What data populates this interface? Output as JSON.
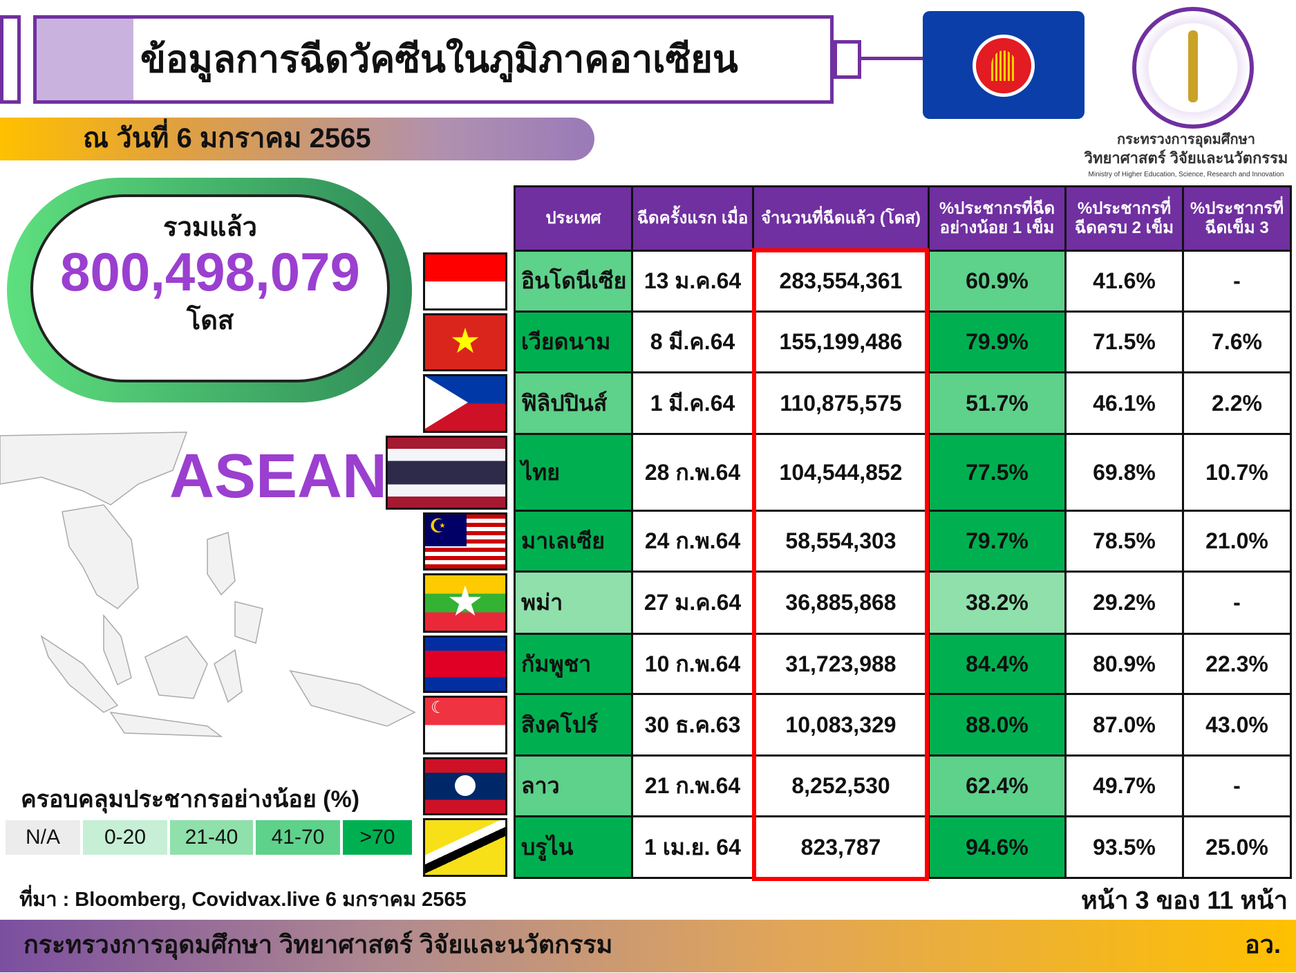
{
  "header": {
    "title": "ข้อมูลการฉีดวัคซีนในภูมิภาคอาเซียน",
    "date": "ณ วันที่ 6 มกราคม 2565"
  },
  "ministry": {
    "name_th": "กระทรวงการอุดมศึกษา",
    "name_th2": "วิทยาศาสตร์ วิจัยและนวัตกรรม",
    "name_en": "Ministry of Higher Education, Science, Research and Innovation"
  },
  "total": {
    "label": "รวมแล้ว",
    "value": "800,498,079",
    "unit": "โดส"
  },
  "map_label": "ASEAN",
  "legend": {
    "title": "ครอบคลุมประชากรอย่างน้อย (%)",
    "items": [
      {
        "label": "N/A",
        "color": "#ececec"
      },
      {
        "label": "0-20",
        "color": "#c6efd5"
      },
      {
        "label": "21-40",
        "color": "#8fe0ab"
      },
      {
        "label": "41-70",
        "color": "#5ed18b"
      },
      {
        "label": ">70",
        "color": "#00b050"
      }
    ]
  },
  "table": {
    "headers": [
      "ประเทศ",
      "ฉีดครั้งแรก เมื่อ",
      "จำนวนที่ฉีดแล้ว (โดส)",
      "%ประชากรที่ฉีด อย่างน้อย 1 เข็ม",
      "%ประชากรที่ ฉีดครบ 2 เข็ม",
      "%ประชากรที่ ฉีดเข็ม 3"
    ],
    "rows": [
      {
        "country": "อินโดนีเซีย",
        "first": "13 ม.ค.64",
        "doses": "283,554,361",
        "one": "60.9%",
        "two": "41.6%",
        "three": "-",
        "band": "light"
      },
      {
        "country": "เวียดนาม",
        "first": "8 มี.ค.64",
        "doses": "155,199,486",
        "one": "79.9%",
        "two": "71.5%",
        "three": "7.6%",
        "band": "dark"
      },
      {
        "country": "ฟิลิปปินส์",
        "first": "1 มี.ค.64",
        "doses": "110,875,575",
        "one": "51.7%",
        "two": "46.1%",
        "three": "2.2%",
        "band": "light"
      },
      {
        "country": "ไทย",
        "first": "28 ก.พ.64",
        "doses": "104,544,852",
        "one": "77.5%",
        "two": "69.8%",
        "three": "10.7%",
        "band": "dark"
      },
      {
        "country": "มาเลเซีย",
        "first": "24 ก.พ.64",
        "doses": "58,554,303",
        "one": "79.7%",
        "two": "78.5%",
        "three": "21.0%",
        "band": "dark"
      },
      {
        "country": "พม่า",
        "first": "27 ม.ค.64",
        "doses": "36,885,868",
        "one": "38.2%",
        "two": "29.2%",
        "three": "-",
        "band": "lighter"
      },
      {
        "country": "กัมพูชา",
        "first": "10 ก.พ.64",
        "doses": "31,723,988",
        "one": "84.4%",
        "two": "80.9%",
        "three": "22.3%",
        "band": "dark"
      },
      {
        "country": "สิงคโปร์",
        "first": "30 ธ.ค.63",
        "doses": "10,083,329",
        "one": "88.0%",
        "two": "87.0%",
        "three": "43.0%",
        "band": "dark"
      },
      {
        "country": "ลาว",
        "first": "21 ก.พ.64",
        "doses": "8,252,530",
        "one": "62.4%",
        "two": "49.7%",
        "three": "-",
        "band": "light"
      },
      {
        "country": "บรูไน",
        "first": "1 เม.ย. 64",
        "doses": "823,787",
        "one": "94.6%",
        "two": "93.5%",
        "three": "25.0%",
        "band": "dark"
      }
    ]
  },
  "source": "ที่มา : Bloomberg, Covidvax.live 6 มกราคม 2565",
  "page": "หน้า 3 ของ 11 หน้า",
  "footer": {
    "left": "กระทรวงการอุดมศึกษา วิทยาศาสตร์ วิจัยและนวัตกรรม",
    "right": "อว."
  }
}
